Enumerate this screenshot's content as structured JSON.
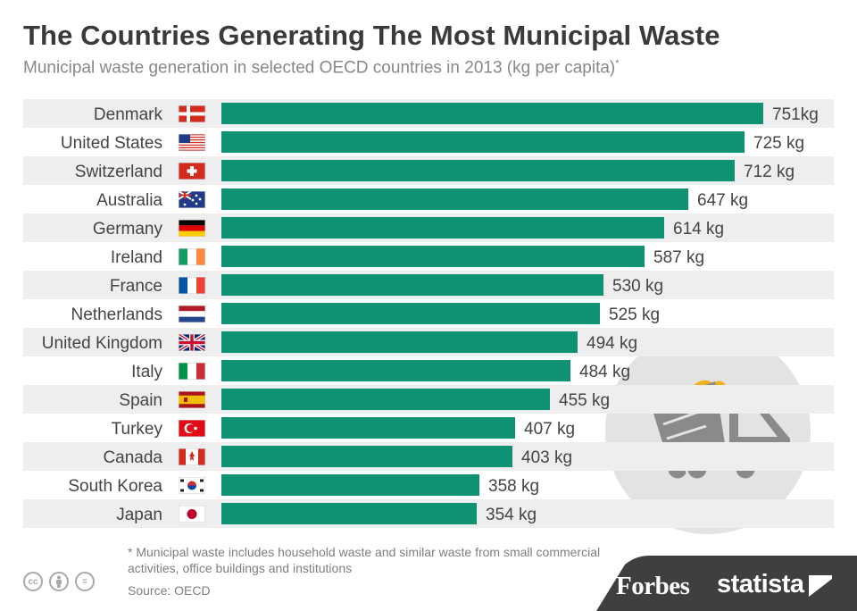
{
  "title": "The Countries Generating The Most Municipal Waste",
  "subtitle": "Municipal waste generation in selected OECD countries in 2013 (kg per capita)",
  "subtitle_mark": "*",
  "footnote": "* Municipal waste includes household waste and similar waste from small commercial activities, office buildings and institutions",
  "source": "Source: OECD",
  "brands": {
    "forbes": "Forbes",
    "statista": "statista"
  },
  "license_icons": [
    "cc-icon",
    "by-icon",
    "nd-icon"
  ],
  "license_labels": {
    "cc": "cc",
    "nd": "="
  },
  "colors": {
    "bar": "#0f9173",
    "band": "#eeeeee",
    "title": "#3a3a3a",
    "label": "#444444",
    "icon_bg": "#e3e3e3",
    "icon_fg": "#8a8a8a",
    "icon_accent": "#f0b31c",
    "footer": "#3f3f3f"
  },
  "chart_data": {
    "type": "bar",
    "orientation": "horizontal",
    "title": "The Countries Generating The Most Municipal Waste",
    "subtitle": "Municipal waste generation in selected OECD countries in 2013 (kg per capita)",
    "unit": "kg per capita",
    "categories": [
      "Denmark",
      "United States",
      "Switzerland",
      "Australia",
      "Germany",
      "Ireland",
      "France",
      "Netherlands",
      "United Kingdom",
      "Italy",
      "Spain",
      "Turkey",
      "Canada",
      "South Korea",
      "Japan"
    ],
    "values": [
      751,
      725,
      712,
      647,
      614,
      587,
      530,
      525,
      494,
      484,
      455,
      407,
      403,
      358,
      354
    ],
    "value_labels": [
      "751kg",
      "725 kg",
      "712 kg",
      "647 kg",
      "614 kg",
      "587 kg",
      "530 kg",
      "525 kg",
      "494 kg",
      "484 kg",
      "455 kg",
      "407 kg",
      "403 kg",
      "358 kg",
      "354 kg"
    ],
    "flags": [
      "denmark-flag-icon",
      "usa-flag-icon",
      "switzerland-flag-icon",
      "australia-flag-icon",
      "germany-flag-icon",
      "ireland-flag-icon",
      "france-flag-icon",
      "netherlands-flag-icon",
      "uk-flag-icon",
      "italy-flag-icon",
      "spain-flag-icon",
      "turkey-flag-icon",
      "canada-flag-icon",
      "south-korea-flag-icon",
      "japan-flag-icon"
    ],
    "xlim": [
      0,
      751
    ],
    "grid": false,
    "legend": "none"
  }
}
